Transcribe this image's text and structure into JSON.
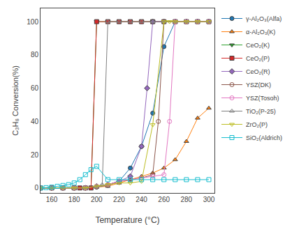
{
  "chart_data": {
    "type": "line",
    "xlabel": "Temperature (°C)",
    "ylabel": "C₃H₈ Conversion(%)",
    "xlim": [
      150,
      305
    ],
    "ylim": [
      -3,
      108
    ],
    "xticks": [
      160,
      180,
      200,
      220,
      240,
      260,
      280,
      300
    ],
    "yticks": [
      0,
      20,
      40,
      60,
      80,
      100
    ],
    "grid": false,
    "legend": "right",
    "series": [
      {
        "name": "γ-Al₂O₃(Alfa)",
        "marker": "circle",
        "x": [
          150,
          160,
          170,
          180,
          190,
          200,
          210,
          220,
          230,
          240,
          250,
          260,
          270,
          280,
          290,
          300
        ],
        "values": [
          0,
          0,
          0,
          0,
          0,
          0.5,
          1.5,
          4,
          12,
          25,
          45,
          85,
          100,
          100,
          100,
          100
        ]
      },
      {
        "name": "α-Al₂O₃(K)",
        "marker": "triangle-up",
        "x": [
          150,
          160,
          170,
          180,
          190,
          200,
          210,
          220,
          230,
          240,
          250,
          260,
          270,
          280,
          290,
          300
        ],
        "values": [
          0,
          0,
          0,
          0,
          0,
          0.5,
          1,
          3,
          5,
          7,
          9,
          12,
          17,
          28,
          42,
          48
        ]
      },
      {
        "name": "CeO₂(K)",
        "marker": "triangle-down",
        "x": [
          150,
          160,
          170,
          180,
          190,
          195,
          200,
          210,
          220,
          230,
          240,
          250,
          260,
          270,
          280,
          290,
          300
        ],
        "values": [
          0,
          0,
          0,
          0,
          0,
          0,
          100,
          100,
          100,
          100,
          100,
          100,
          100,
          100,
          100,
          100,
          100
        ]
      },
      {
        "name": "CeO₂(P)",
        "marker": "square",
        "x": [
          150,
          160,
          170,
          180,
          185,
          190,
          195,
          200,
          210,
          220,
          230,
          240,
          250,
          260,
          270,
          280,
          290,
          300
        ],
        "values": [
          0,
          0,
          0,
          0,
          0,
          0,
          0,
          100,
          100,
          100,
          100,
          100,
          100,
          100,
          100,
          100,
          100,
          100
        ]
      },
      {
        "name": "CeO₂(R)",
        "marker": "diamond",
        "x": [
          150,
          160,
          170,
          180,
          190,
          200,
          210,
          220,
          230,
          240,
          245,
          250,
          260,
          270,
          280,
          290,
          300
        ],
        "values": [
          0,
          0,
          0,
          0,
          0,
          1,
          2,
          4,
          7,
          25,
          60,
          100,
          100,
          100,
          100,
          100,
          100
        ]
      },
      {
        "name": "YSZ(DK)",
        "marker": "circle-open",
        "x": [
          150,
          160,
          170,
          180,
          190,
          200,
          210,
          220,
          230,
          240,
          250,
          255,
          260,
          270,
          280,
          290,
          300
        ],
        "values": [
          0,
          0,
          0,
          0,
          0,
          1,
          2,
          4,
          5,
          6,
          8,
          40,
          100,
          100,
          100,
          100,
          100
        ]
      },
      {
        "name": "YSZ(Tosoh)",
        "marker": "circle-open",
        "x": [
          150,
          160,
          170,
          180,
          190,
          200,
          210,
          220,
          230,
          240,
          250,
          260,
          265,
          270,
          280,
          290,
          300
        ],
        "values": [
          0,
          0,
          0,
          0,
          0,
          1,
          2,
          4,
          5,
          6,
          7,
          8,
          40,
          100,
          100,
          100,
          100
        ]
      },
      {
        "name": "TiO₂(P-25)",
        "marker": "triangle-up-open",
        "x": [
          150,
          160,
          170,
          180,
          190,
          200,
          205,
          210,
          220,
          230,
          240,
          250,
          260,
          270,
          280,
          290,
          300
        ],
        "values": [
          0,
          0,
          0,
          0,
          0,
          1,
          2,
          100,
          100,
          100,
          100,
          100,
          100,
          100,
          100,
          100,
          100
        ]
      },
      {
        "name": "ZrO₂(P)",
        "marker": "triangle-down-open",
        "x": [
          150,
          160,
          170,
          180,
          190,
          200,
          210,
          220,
          230,
          240,
          250,
          260,
          265,
          270,
          280,
          290,
          300
        ],
        "values": [
          0,
          0,
          0,
          0,
          0,
          1,
          2,
          3,
          3,
          4,
          38,
          100,
          100,
          100,
          100,
          100,
          100
        ]
      },
      {
        "name": "SiO₂(Aldrich)",
        "marker": "square-open",
        "x": [
          150,
          155,
          160,
          165,
          170,
          175,
          180,
          185,
          190,
          195,
          200,
          210,
          220,
          230,
          240,
          250,
          260,
          270,
          280,
          290,
          300
        ],
        "values": [
          0,
          0.2,
          0.5,
          1,
          1.5,
          2,
          3,
          5,
          8,
          11,
          13,
          5,
          5,
          5,
          5,
          5,
          5,
          5,
          5,
          5,
          5
        ]
      }
    ]
  }
}
